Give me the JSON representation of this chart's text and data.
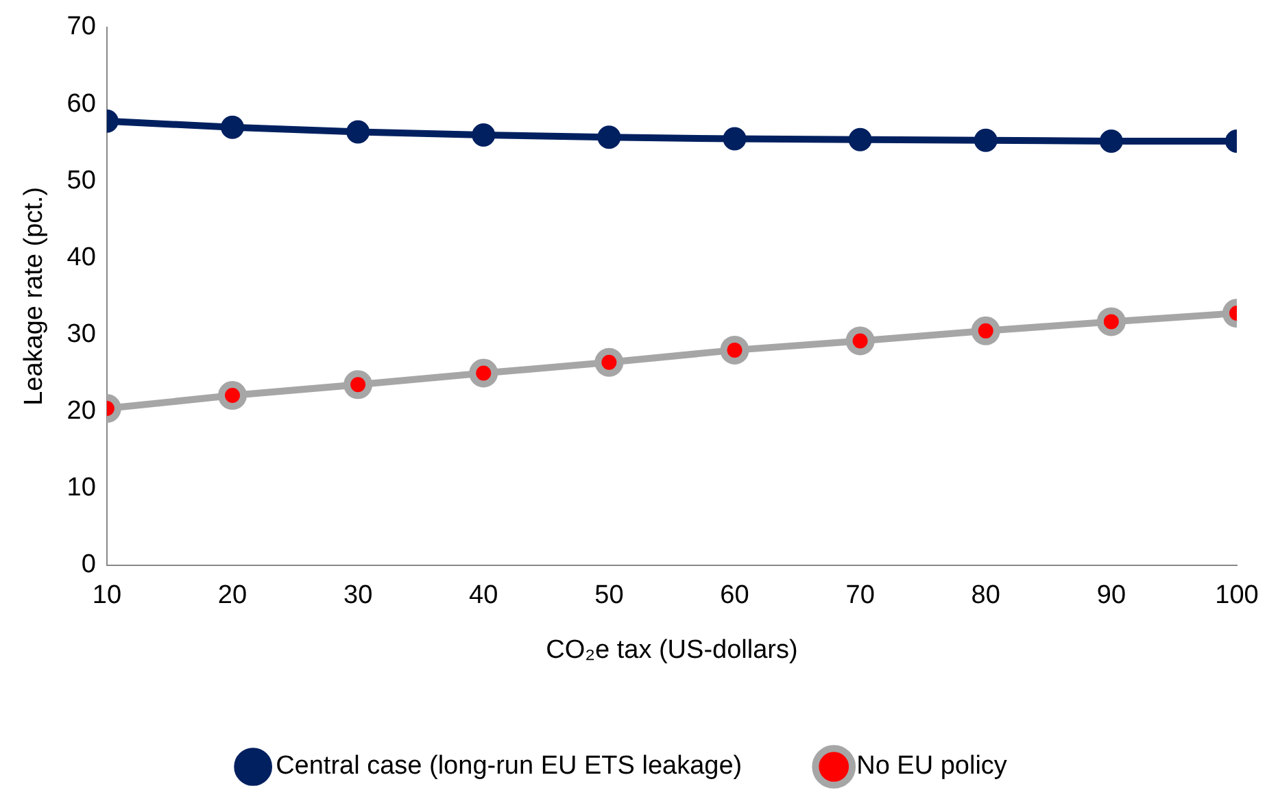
{
  "chart_data": {
    "type": "line",
    "xlabel": "CO₂e tax (US-dollars)",
    "ylabel": "Leakage rate (pct.)",
    "x": [
      10,
      20,
      30,
      40,
      50,
      60,
      70,
      80,
      90,
      100
    ],
    "series": [
      {
        "name": "Central case (long-run EU ETS leakage)",
        "color": "#002060",
        "values": [
          57.8,
          57.0,
          56.4,
          56.0,
          55.7,
          55.5,
          55.4,
          55.3,
          55.2,
          55.2
        ]
      },
      {
        "name": "No EU policy",
        "color": "#a6a6a6",
        "values": [
          20.4,
          22.1,
          23.5,
          25.0,
          26.4,
          28.0,
          29.2,
          30.5,
          31.7,
          32.8
        ]
      }
    ],
    "xlim": [
      10,
      100
    ],
    "xticks": [
      10,
      20,
      30,
      40,
      50,
      60,
      70,
      80,
      90,
      100
    ],
    "ylim": [
      0,
      70
    ],
    "yticks": [
      0,
      10,
      20,
      30,
      40,
      50,
      60,
      70
    ],
    "grid": false,
    "legend": "bottom",
    "marker": "circle",
    "line_style": "solid"
  }
}
